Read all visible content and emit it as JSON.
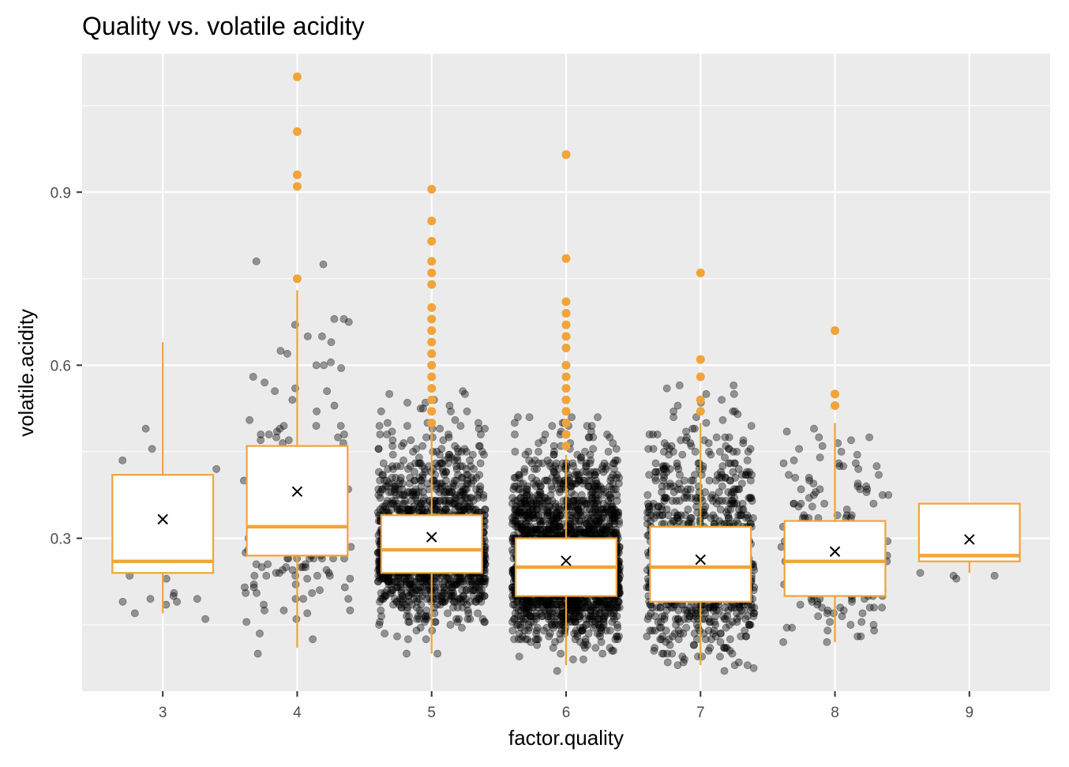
{
  "chart_data": {
    "type": "box+scatter",
    "title": "Quality vs. volatile acidity",
    "xlabel": "factor.quality",
    "ylabel": "volatile.acidity",
    "categories": [
      "3",
      "4",
      "5",
      "6",
      "7",
      "8",
      "9"
    ],
    "ylim": [
      0.035,
      1.14
    ],
    "yticks": [
      0.3,
      0.6,
      0.9
    ],
    "yticklabels": [
      "0.3",
      "0.6",
      "0.9"
    ],
    "grid": true,
    "legend": "none",
    "colors": {
      "panel_background": "#ebebeb",
      "grid": "#ffffff",
      "box": "#f0a43a",
      "box_fill": "#ffffff",
      "points": "#000000",
      "mean_marker": "#000000"
    },
    "boxes": [
      {
        "category": "3",
        "q1": 0.24,
        "median": 0.26,
        "q3": 0.41,
        "whisker_low": 0.17,
        "whisker_high": 0.64,
        "mean": 0.333,
        "outliers": []
      },
      {
        "category": "4",
        "q1": 0.27,
        "median": 0.32,
        "q3": 0.46,
        "whisker_low": 0.11,
        "whisker_high": 0.73,
        "mean": 0.381,
        "outliers": [
          1.1,
          1.005,
          0.93,
          0.91,
          0.75
        ]
      },
      {
        "category": "5",
        "q1": 0.24,
        "median": 0.28,
        "q3": 0.34,
        "whisker_low": 0.1,
        "whisker_high": 0.49,
        "mean": 0.302,
        "outliers": [
          0.905,
          0.85,
          0.815,
          0.78,
          0.76,
          0.74,
          0.7,
          0.68,
          0.66,
          0.64,
          0.62,
          0.6,
          0.58,
          0.56,
          0.54,
          0.52,
          0.5
        ]
      },
      {
        "category": "6",
        "q1": 0.2,
        "median": 0.25,
        "q3": 0.3,
        "whisker_low": 0.08,
        "whisker_high": 0.445,
        "mean": 0.261,
        "outliers": [
          0.965,
          0.785,
          0.71,
          0.69,
          0.67,
          0.65,
          0.63,
          0.6,
          0.58,
          0.56,
          0.54,
          0.52,
          0.5,
          0.48,
          0.46
        ]
      },
      {
        "category": "7",
        "q1": 0.19,
        "median": 0.25,
        "q3": 0.32,
        "whisker_low": 0.08,
        "whisker_high": 0.5,
        "mean": 0.263,
        "outliers": [
          0.76,
          0.61,
          0.58,
          0.54,
          0.52
        ]
      },
      {
        "category": "8",
        "q1": 0.2,
        "median": 0.26,
        "q3": 0.33,
        "whisker_low": 0.12,
        "whisker_high": 0.5,
        "mean": 0.277,
        "outliers": [
          0.66,
          0.55,
          0.53
        ]
      },
      {
        "category": "9",
        "q1": 0.26,
        "median": 0.27,
        "q3": 0.36,
        "whisker_low": 0.24,
        "whisker_high": 0.36,
        "mean": 0.298,
        "outliers": []
      }
    ],
    "jitter_points": [
      {
        "category": "3",
        "count": 20
      },
      {
        "category": "4",
        "count": 163
      },
      {
        "category": "5",
        "count": 1457
      },
      {
        "category": "6",
        "count": 2198
      },
      {
        "category": "7",
        "count": 880
      },
      {
        "category": "8",
        "count": 175
      },
      {
        "category": "9",
        "count": 5
      }
    ]
  }
}
